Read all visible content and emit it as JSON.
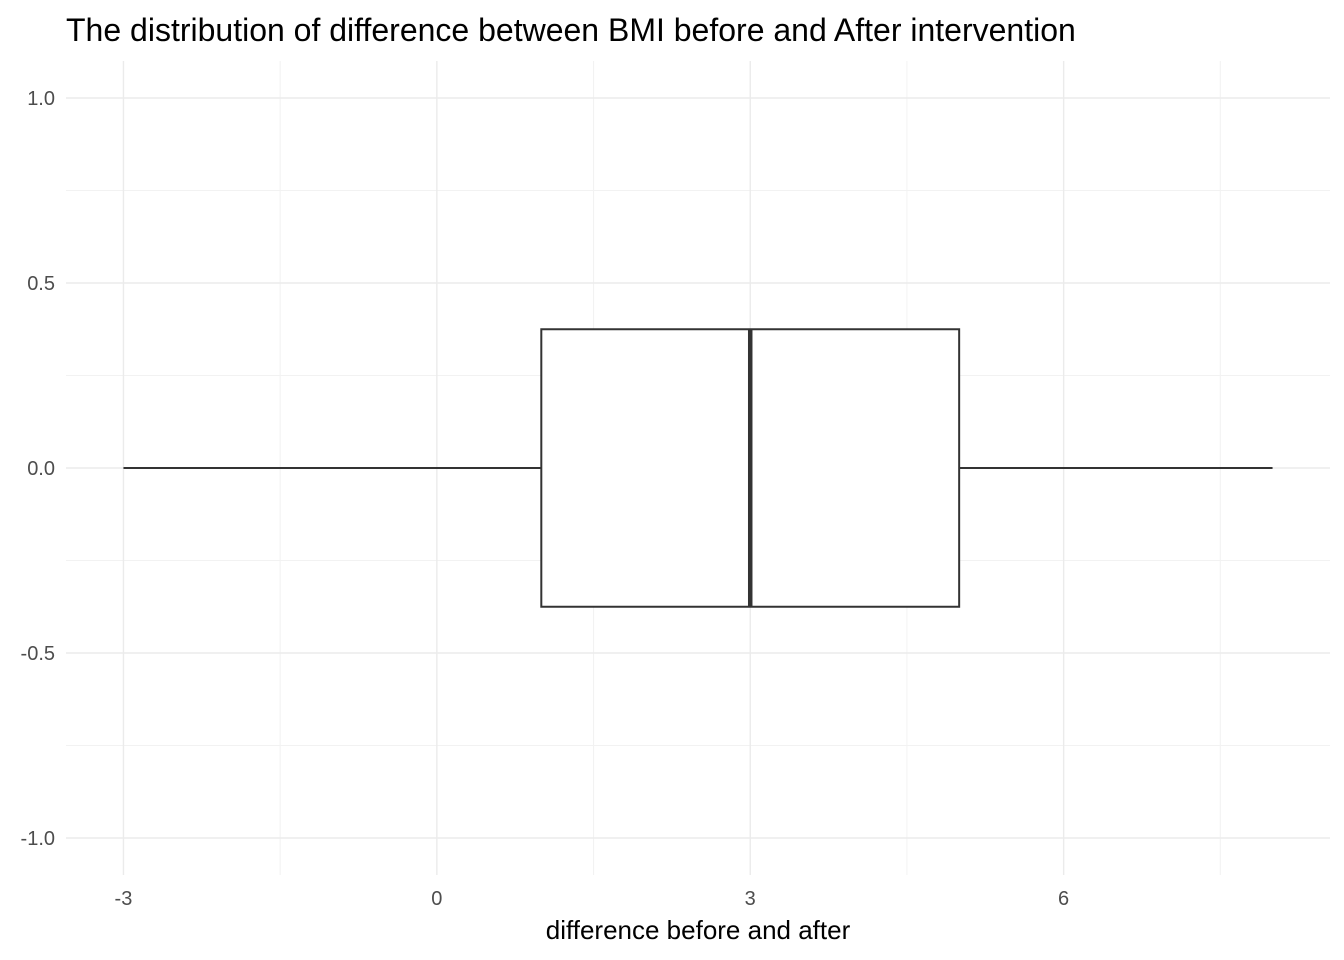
{
  "chart_data": {
    "type": "boxplot",
    "title": "The distribution of difference between BMI before and After intervention",
    "xlabel": "difference before and after",
    "ylabel": "",
    "xlim": [
      -3.55,
      8.55
    ],
    "ylim": [
      -1.1,
      1.1
    ],
    "x_ticks": [
      -3,
      0,
      3,
      6
    ],
    "x_tick_labels": [
      "-3",
      "0",
      "3",
      "6"
    ],
    "x_minor_ticks": [
      -1.5,
      1.5,
      4.5,
      7.5
    ],
    "y_ticks": [
      1.0,
      0.5,
      0.0,
      -0.5,
      -1.0
    ],
    "y_tick_labels": [
      "1.0",
      "0.5",
      "0.0",
      "-0.5",
      "-1.0"
    ],
    "y_minor_ticks": [
      0.75,
      0.25,
      -0.25,
      -0.75
    ],
    "box": {
      "whisker_low": -3.0,
      "q1": 1.0,
      "median": 3.0,
      "q3": 5.0,
      "whisker_high": 8.0,
      "y_center": 0.0,
      "half_width": 0.375
    },
    "grid": true,
    "legend": "none",
    "colors": {
      "grid_major": "#ebebeb",
      "grid_minor": "#f2f2f2",
      "box_line": "#333333",
      "box_fill": "#ffffff",
      "tick_label": "#4d4d4d",
      "title": "#000000"
    }
  }
}
